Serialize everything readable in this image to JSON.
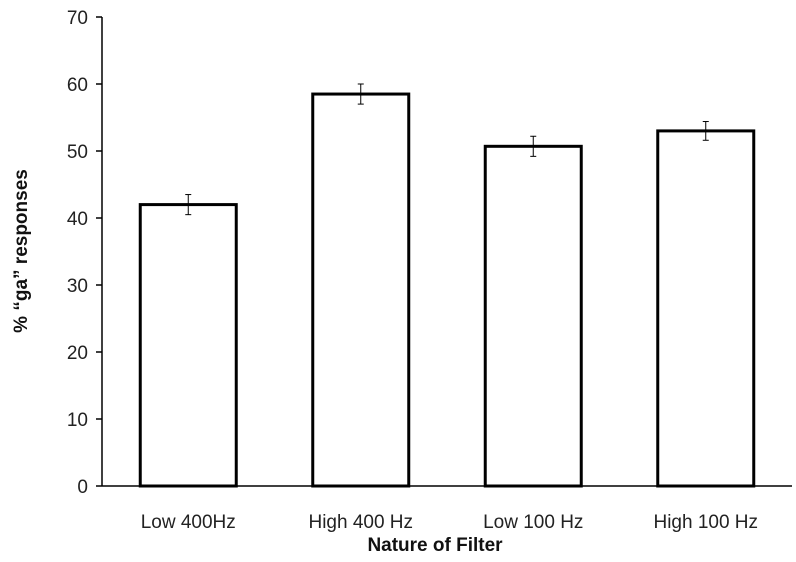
{
  "chart_data": {
    "type": "bar",
    "title": "",
    "xlabel": "Nature of Filter",
    "ylabel": "% “ga” responses",
    "categories": [
      "Low 400Hz",
      "High 400 Hz",
      "Low 100 Hz",
      "High 100 Hz"
    ],
    "values": [
      42.0,
      58.5,
      50.7,
      53.0
    ],
    "errors": [
      1.5,
      1.5,
      1.5,
      1.4
    ],
    "ylim": [
      0,
      70
    ],
    "yticks": [
      0,
      10,
      20,
      30,
      40,
      50,
      60,
      70
    ],
    "grid": false,
    "legend": "none",
    "colors": {
      "bar_fill": "#ffffff",
      "bar_stroke": "#000000",
      "axis": "#000000"
    }
  }
}
